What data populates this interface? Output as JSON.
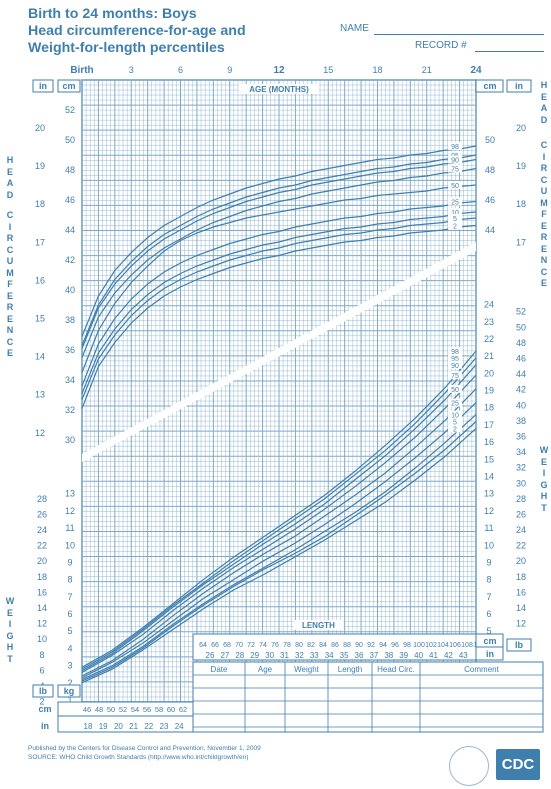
{
  "header": {
    "title_lines": [
      "Birth to 24 months: Boys",
      "Head circumference-for-age and",
      "Weight-for-length percentiles"
    ],
    "name_label": "NAME",
    "record_label": "RECORD #"
  },
  "side_words": {
    "head": "HEAD",
    "circumference": "CIRCUMFERENCE",
    "weight": "WEIGHT"
  },
  "axes": {
    "age_title": "AGE (MONTHS)",
    "age_ticks": [
      "Birth",
      "3",
      "6",
      "9",
      "12",
      "15",
      "18",
      "21",
      "24"
    ],
    "length_title": "LENGTH",
    "unit_in": "in",
    "unit_cm": "cm",
    "unit_kg": "kg",
    "unit_lb": "lb",
    "hc_cm_ticks": [
      "52",
      "50",
      "48",
      "46",
      "44",
      "42",
      "40",
      "38",
      "36",
      "34",
      "32",
      "30"
    ],
    "hc_in_ticks": [
      "20",
      "19",
      "18",
      "17",
      "16",
      "15",
      "14",
      "13",
      "12"
    ],
    "hc_in_right": [
      "20",
      "19",
      "18",
      "17"
    ],
    "hc_cm_right": [
      "50",
      "48",
      "46",
      "44"
    ],
    "wt_kg_right": [
      "24",
      "23",
      "22",
      "21",
      "20",
      "19",
      "18",
      "17",
      "16",
      "15",
      "14",
      "13",
      "12",
      "11",
      "10",
      "9",
      "8",
      "7",
      "6",
      "5"
    ],
    "wt_lb_right": [
      "52",
      "50",
      "48",
      "46",
      "44",
      "42",
      "40",
      "38",
      "36",
      "34",
      "32",
      "30",
      "28",
      "26",
      "24",
      "22",
      "20",
      "18",
      "16",
      "14",
      "12"
    ],
    "wt_lb_left": [
      "28",
      "26",
      "24",
      "22",
      "20",
      "18",
      "16",
      "14",
      "12",
      "10",
      "8",
      "6",
      "4",
      "2"
    ],
    "wt_kg_left": [
      "13",
      "12",
      "11",
      "10",
      "9",
      "8",
      "7",
      "6",
      "5",
      "4",
      "3",
      "2",
      "1"
    ],
    "len_cm_ticks": [
      "64",
      "66",
      "68",
      "70",
      "72",
      "74",
      "76",
      "78",
      "80",
      "82",
      "84",
      "86",
      "88",
      "90",
      "92",
      "94",
      "96",
      "98",
      "100",
      "102",
      "104",
      "106",
      "108",
      "110"
    ],
    "len_in_ticks": [
      "26",
      "27",
      "28",
      "29",
      "30",
      "31",
      "32",
      "33",
      "34",
      "35",
      "36",
      "37",
      "38",
      "39",
      "40",
      "41",
      "42",
      "43"
    ],
    "len_cm_small": [
      "46",
      "48",
      "50",
      "52",
      "54",
      "56",
      "58",
      "60",
      "62"
    ],
    "len_in_small": [
      "18",
      "19",
      "20",
      "21",
      "22",
      "23",
      "24"
    ]
  },
  "table": {
    "headers": [
      "Date",
      "Age",
      "Weight",
      "Length",
      "Head Circ.",
      "Comment"
    ]
  },
  "footer": {
    "line1": "Published by the Centers for Disease Control and Prevention, November 1, 2009",
    "line2": "SOURCE:  WHO Child Growth Standards (http://www.who.int/childgrowth/en)"
  },
  "logo": "CDC",
  "colors": {
    "ink": "#3f7fae",
    "grid": "#7fa9c8",
    "bg": "#ffffff"
  },
  "chart_data": [
    {
      "type": "line",
      "title": "Head circumference-for-age",
      "xlabel": "AGE (MONTHS)",
      "ylabel": "HEAD CIRCUMFERENCE",
      "x": [
        0,
        1,
        2,
        3,
        4,
        5,
        6,
        7,
        8,
        9,
        10,
        11,
        12,
        13,
        14,
        15,
        16,
        17,
        18,
        19,
        20,
        21,
        22,
        23,
        24
      ],
      "xlim": [
        0,
        24
      ],
      "ylim": [
        30,
        53
      ],
      "series": [
        {
          "name": "98",
          "values": [
            36.9,
            39.6,
            41.3,
            42.5,
            43.5,
            44.3,
            44.9,
            45.5,
            46.0,
            46.4,
            46.8,
            47.1,
            47.4,
            47.6,
            47.9,
            48.1,
            48.3,
            48.5,
            48.7,
            48.8,
            49.0,
            49.1,
            49.3,
            49.4,
            49.6
          ]
        },
        {
          "name": "95",
          "values": [
            36.3,
            39.0,
            40.7,
            41.9,
            42.9,
            43.7,
            44.3,
            44.9,
            45.4,
            45.8,
            46.2,
            46.5,
            46.8,
            47.0,
            47.3,
            47.5,
            47.7,
            47.9,
            48.1,
            48.2,
            48.4,
            48.5,
            48.7,
            48.8,
            49.0
          ]
        },
        {
          "name": "90",
          "values": [
            36.1,
            38.8,
            40.4,
            41.6,
            42.6,
            43.4,
            44.0,
            44.6,
            45.1,
            45.5,
            45.9,
            46.2,
            46.5,
            46.7,
            47.0,
            47.2,
            47.4,
            47.6,
            47.8,
            47.9,
            48.1,
            48.2,
            48.4,
            48.5,
            48.7
          ]
        },
        {
          "name": "75",
          "values": [
            35.5,
            38.2,
            39.8,
            41.0,
            42.0,
            42.8,
            43.4,
            44.0,
            44.5,
            44.9,
            45.3,
            45.6,
            45.9,
            46.1,
            46.4,
            46.6,
            46.8,
            47.0,
            47.2,
            47.3,
            47.5,
            47.6,
            47.8,
            47.9,
            48.1
          ]
        },
        {
          "name": "50",
          "values": [
            34.5,
            37.3,
            39.1,
            40.5,
            41.6,
            42.6,
            43.3,
            43.8,
            44.2,
            44.5,
            44.8,
            45.0,
            45.2,
            45.4,
            45.6,
            45.8,
            46.0,
            46.1,
            46.3,
            46.4,
            46.5,
            46.6,
            46.8,
            46.9,
            47.0
          ]
        },
        {
          "name": "25",
          "values": [
            33.6,
            36.4,
            38.1,
            39.4,
            40.4,
            41.2,
            41.8,
            42.3,
            42.7,
            43.1,
            43.4,
            43.7,
            43.9,
            44.2,
            44.4,
            44.6,
            44.8,
            44.9,
            45.1,
            45.2,
            45.4,
            45.5,
            45.6,
            45.8,
            45.9
          ]
        },
        {
          "name": "10",
          "values": [
            33.1,
            35.8,
            37.4,
            38.7,
            39.7,
            40.5,
            41.1,
            41.6,
            42.0,
            42.4,
            42.7,
            43.0,
            43.2,
            43.5,
            43.7,
            43.9,
            44.1,
            44.2,
            44.4,
            44.5,
            44.7,
            44.8,
            44.9,
            45.1,
            45.2
          ]
        },
        {
          "name": "5",
          "values": [
            32.7,
            35.4,
            37.0,
            38.3,
            39.3,
            40.1,
            40.7,
            41.2,
            41.6,
            42.0,
            42.3,
            42.6,
            42.8,
            43.1,
            43.3,
            43.5,
            43.7,
            43.8,
            44.0,
            44.1,
            44.3,
            44.4,
            44.5,
            44.7,
            44.8
          ]
        },
        {
          "name": "2",
          "values": [
            32.1,
            34.9,
            36.5,
            37.8,
            38.8,
            39.6,
            40.2,
            40.7,
            41.1,
            41.5,
            41.8,
            42.1,
            42.3,
            42.6,
            42.8,
            43.0,
            43.2,
            43.3,
            43.5,
            43.6,
            43.8,
            43.9,
            44.0,
            44.2,
            44.3
          ]
        }
      ]
    },
    {
      "type": "line",
      "title": "Weight-for-length",
      "xlabel": "LENGTH",
      "ylabel": "WEIGHT",
      "x": [
        45,
        50,
        55,
        60,
        65,
        70,
        75,
        80,
        85,
        90,
        95,
        100,
        105,
        110
      ],
      "xlim": [
        45,
        110
      ],
      "ylim": [
        1,
        24.5
      ],
      "series": [
        {
          "name": "98",
          "values": [
            2.9,
            3.9,
            5.2,
            6.6,
            8.0,
            9.3,
            10.5,
            11.7,
            12.9,
            14.3,
            15.8,
            17.4,
            19.2,
            21.3
          ]
        },
        {
          "name": "95",
          "values": [
            2.8,
            3.8,
            5.1,
            6.5,
            7.8,
            9.1,
            10.3,
            11.5,
            12.7,
            14.1,
            15.5,
            17.1,
            18.9,
            20.9
          ]
        },
        {
          "name": "90",
          "values": [
            2.7,
            3.7,
            5.0,
            6.4,
            7.7,
            8.9,
            10.1,
            11.2,
            12.4,
            13.8,
            15.2,
            16.8,
            18.5,
            20.5
          ]
        },
        {
          "name": "75",
          "values": [
            2.6,
            3.6,
            4.8,
            6.2,
            7.5,
            8.7,
            9.8,
            10.9,
            12.1,
            13.4,
            14.8,
            16.3,
            18.0,
            19.9
          ]
        },
        {
          "name": "50",
          "values": [
            2.4,
            3.3,
            4.5,
            5.9,
            7.2,
            8.4,
            9.5,
            10.5,
            11.7,
            12.9,
            14.2,
            15.7,
            17.3,
            19.1
          ]
        },
        {
          "name": "25",
          "values": [
            2.3,
            3.2,
            4.3,
            5.6,
            6.9,
            8.0,
            9.1,
            10.1,
            11.2,
            12.4,
            13.7,
            15.1,
            16.6,
            18.3
          ]
        },
        {
          "name": "10",
          "values": [
            2.2,
            3.0,
            4.1,
            5.4,
            6.6,
            7.7,
            8.7,
            9.7,
            10.8,
            11.9,
            13.1,
            14.5,
            16.0,
            17.6
          ]
        },
        {
          "name": "5",
          "values": [
            2.1,
            2.9,
            4.0,
            5.3,
            6.5,
            7.6,
            8.6,
            9.5,
            10.5,
            11.7,
            12.9,
            14.2,
            15.6,
            17.2
          ]
        },
        {
          "name": "2",
          "values": [
            2.0,
            2.8,
            3.9,
            5.1,
            6.3,
            7.4,
            8.3,
            9.3,
            10.3,
            11.4,
            12.5,
            13.8,
            15.2,
            16.8
          ]
        }
      ]
    }
  ]
}
